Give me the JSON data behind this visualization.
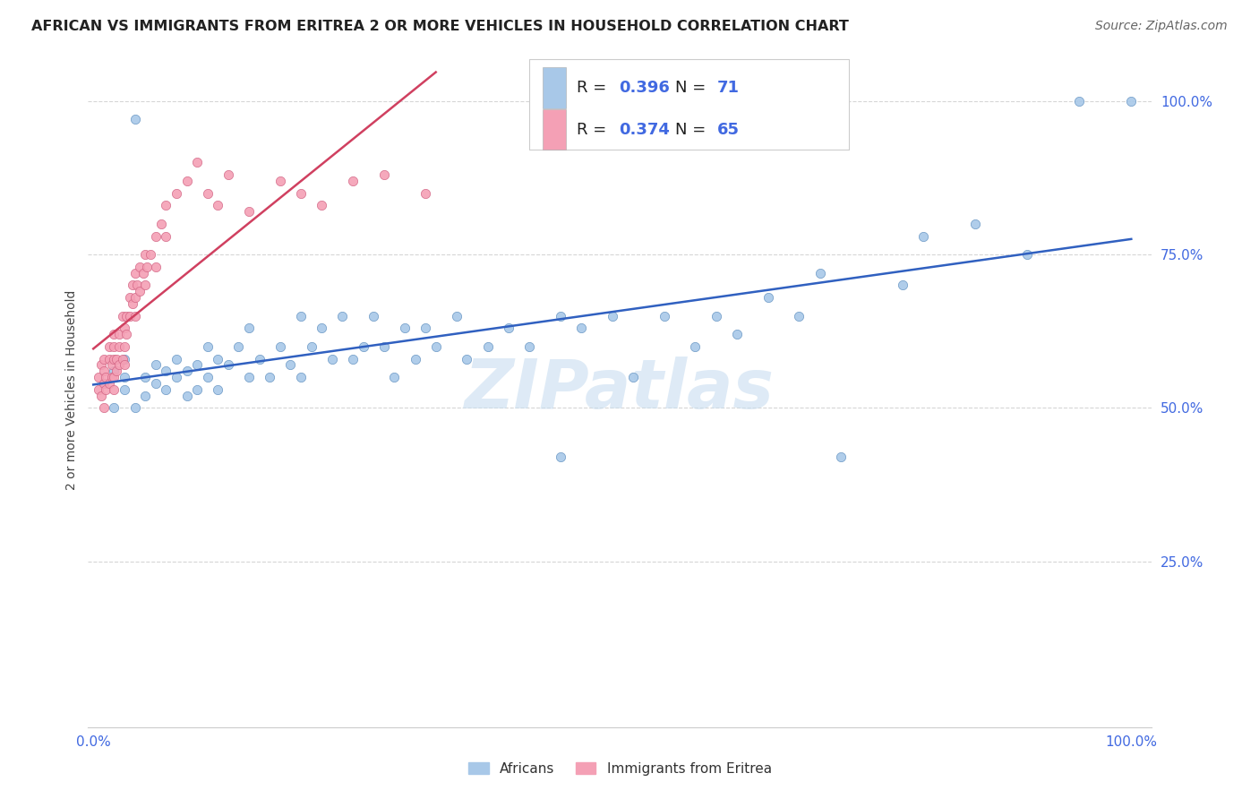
{
  "title": "AFRICAN VS IMMIGRANTS FROM ERITREA 2 OR MORE VEHICLES IN HOUSEHOLD CORRELATION CHART",
  "source": "Source: ZipAtlas.com",
  "ylabel": "2 or more Vehicles in Household",
  "legend_africans_R": "0.396",
  "legend_africans_N": "71",
  "legend_eritrea_R": "0.374",
  "legend_eritrea_N": "65",
  "legend_label_africans": "Africans",
  "legend_label_eritrea": "Immigrants from Eritrea",
  "watermark": "ZIPatlas",
  "africans_color": "#a8c8e8",
  "eritrea_color": "#f4a0b5",
  "africans_line_color": "#3060c0",
  "eritrea_line_color": "#d04060",
  "africans_marker_edge": "#6090c0",
  "eritrea_marker_edge": "#d06080",
  "tick_color": "#4169e1",
  "grid_color": "#cccccc",
  "title_color": "#222222",
  "source_color": "#666666",
  "legend_border_color": "#cccccc",
  "label_color": "#444444"
}
